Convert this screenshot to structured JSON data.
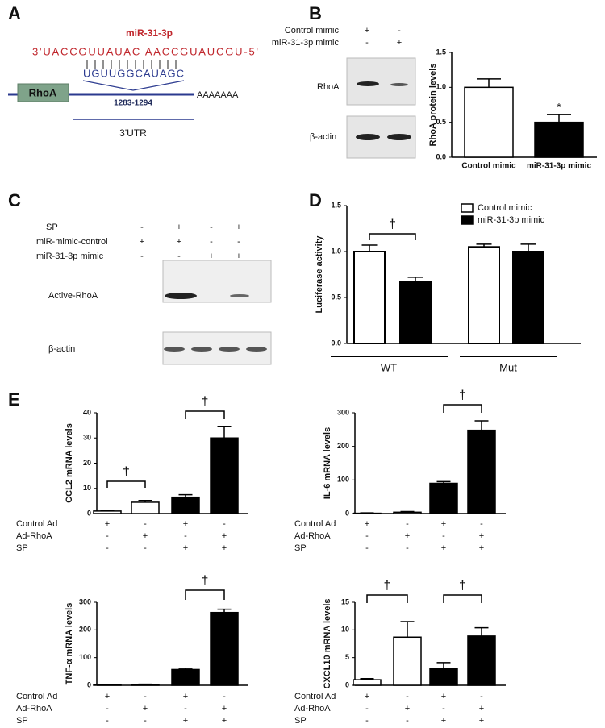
{
  "panel_labels": [
    "A",
    "B",
    "C",
    "D",
    "E"
  ],
  "panel_a": {
    "mirna_name": "miR-31-3p",
    "mirna_sequence": "3'UACCGUUAUAC AACCGUAUCGU-5'",
    "target_sequence": "UGUUGGCAUAGC",
    "gene": "RhoA",
    "site": "1283-1294",
    "poly_a": "AAAAAAA",
    "region": "3'UTR"
  },
  "panel_b_blot": {
    "conditions": [
      {
        "name": "Control mimic",
        "signs": [
          "+",
          "-"
        ]
      },
      {
        "name": "miR-31-3p mimic",
        "signs": [
          "-",
          "+"
        ]
      }
    ],
    "bands": [
      "RhoA",
      "β-actin"
    ]
  },
  "panel_c": {
    "conditions": [
      {
        "name": "SP",
        "signs": [
          "-",
          "+",
          "-",
          "+"
        ]
      },
      {
        "name": "miR-mimic-control",
        "signs": [
          "+",
          "+",
          "-",
          "-"
        ]
      },
      {
        "name": "miR-31-3p mimic",
        "signs": [
          "-",
          "-",
          "+",
          "+"
        ]
      }
    ],
    "bands": [
      "Active-RhoA",
      "β-actin"
    ]
  },
  "chart_data": [
    {
      "type": "bar",
      "ylabel": "RhoA protein levels",
      "categories": [
        "Control mimic",
        "miR-31-3p mimic"
      ],
      "values": [
        1.0,
        0.5
      ],
      "errors": [
        0.12,
        0.11
      ],
      "colors": [
        "#ffffff",
        "#000000"
      ],
      "ylim": [
        0,
        1.5
      ],
      "yticks": [
        {
          "value": 0,
          "label": "0.0"
        },
        0.5,
        {
          "value": 1,
          "label": "1.0"
        },
        1.5
      ],
      "annotations": [
        "*"
      ]
    },
    {
      "type": "grouped_bar",
      "ylabel": "Luciferase activity",
      "categories": [
        "WT",
        "Mut"
      ],
      "series": [
        {
          "name": "Control mimic",
          "color": "#ffffff",
          "values": [
            1.0,
            1.05
          ],
          "errors": [
            0.07,
            0.03
          ]
        },
        {
          "name": "miR-31-3p mimic",
          "color": "#000000",
          "values": [
            0.67,
            1.0
          ],
          "errors": [
            0.05,
            0.08
          ]
        }
      ],
      "ylim": [
        0,
        1.5
      ],
      "yticks": [
        {
          "value": 0,
          "label": "0.0"
        },
        0.5,
        {
          "value": 1,
          "label": "1.0"
        },
        1.5
      ],
      "legend": "top-right",
      "annotations": [
        "†"
      ]
    },
    {
      "type": "bar",
      "ylabel": "CCL2 mRNA levels",
      "conditions": [
        {
          "name": "Control Ad",
          "signs": [
            "+",
            "-",
            "+",
            "-"
          ]
        },
        {
          "name": "Ad-RhoA",
          "signs": [
            "-",
            "+",
            "-",
            "+"
          ]
        },
        {
          "name": "SP",
          "signs": [
            "-",
            "-",
            "+",
            "+"
          ]
        }
      ],
      "values": [
        1,
        4.5,
        6.5,
        30
      ],
      "errors": [
        0.3,
        0.7,
        1,
        4.5
      ],
      "colors": [
        "#ffffff",
        "#ffffff",
        "#000000",
        "#000000"
      ],
      "ylim": [
        0,
        40
      ],
      "yticks": [
        0,
        10,
        20,
        30,
        40
      ],
      "annotations": [
        "†",
        "†"
      ]
    },
    {
      "type": "bar",
      "ylabel": "IL-6 mRNA levels",
      "conditions": [
        {
          "name": "Control Ad",
          "signs": [
            "+",
            "-",
            "+",
            "-"
          ]
        },
        {
          "name": "Ad-RhoA",
          "signs": [
            "-",
            "+",
            "-",
            "+"
          ]
        },
        {
          "name": "SP",
          "signs": [
            "-",
            "-",
            "+",
            "+"
          ]
        }
      ],
      "values": [
        1,
        4,
        90,
        248
      ],
      "errors": [
        1,
        2,
        5,
        28
      ],
      "colors": [
        "#ffffff",
        "#ffffff",
        "#000000",
        "#000000"
      ],
      "ylim": [
        0,
        300
      ],
      "yticks": [
        0,
        100,
        200,
        300
      ],
      "annotations": [
        "†"
      ]
    },
    {
      "type": "bar",
      "ylabel": "TNF-α mRNA levels",
      "conditions": [
        {
          "name": "Control Ad",
          "signs": [
            "+",
            "-",
            "+",
            "-"
          ]
        },
        {
          "name": "Ad-RhoA",
          "signs": [
            "-",
            "+",
            "-",
            "+"
          ]
        },
        {
          "name": "SP",
          "signs": [
            "-",
            "-",
            "+",
            "+"
          ]
        }
      ],
      "values": [
        1,
        3,
        57,
        263
      ],
      "errors": [
        0.5,
        1,
        4,
        12
      ],
      "colors": [
        "#ffffff",
        "#ffffff",
        "#000000",
        "#000000"
      ],
      "ylim": [
        0,
        300
      ],
      "yticks": [
        0,
        100,
        200,
        300
      ],
      "annotations": [
        "†"
      ]
    },
    {
      "type": "bar",
      "ylabel": "CXCL10 mRNA levels",
      "conditions": [
        {
          "name": "Control Ad",
          "signs": [
            "+",
            "-",
            "+",
            "-"
          ]
        },
        {
          "name": "Ad-RhoA",
          "signs": [
            "-",
            "+",
            "-",
            "+"
          ]
        },
        {
          "name": "SP",
          "signs": [
            "-",
            "-",
            "+",
            "+"
          ]
        }
      ],
      "values": [
        1,
        8.7,
        3,
        8.9
      ],
      "errors": [
        0.2,
        2.8,
        1.1,
        1.5
      ],
      "colors": [
        "#ffffff",
        "#ffffff",
        "#000000",
        "#000000"
      ],
      "ylim": [
        0,
        15
      ],
      "yticks": [
        0,
        5,
        10,
        15
      ],
      "annotations": [
        "†",
        "†"
      ]
    }
  ]
}
